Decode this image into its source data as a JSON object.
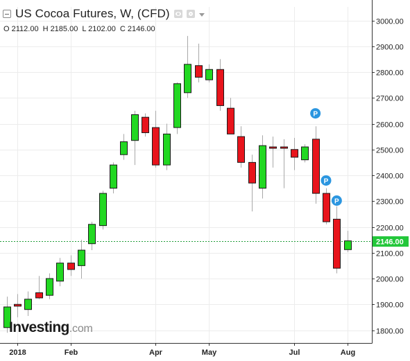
{
  "header": {
    "title": "US Cocoa Futures, W, (CFD)",
    "ohlc": {
      "open": "O 2112.00",
      "high": "H 2185.00",
      "low": "L 2102.00",
      "close": "C 2146.00"
    }
  },
  "logo": {
    "main": "Investing",
    "suffix": ".com"
  },
  "colors": {
    "up": "#22d822",
    "down": "#e8141c",
    "marker": "#2b96e0",
    "price_line": "#1f9c38",
    "grid": "#ececec"
  },
  "chart_data": {
    "type": "candlestick",
    "title": "US Cocoa Futures, W, (CFD)",
    "ylim": [
      1720,
      3080
    ],
    "y_ticks": [
      "3000.00",
      "2900.00",
      "2800.00",
      "2700.00",
      "2600.00",
      "2500.00",
      "2400.00",
      "2300.00",
      "2200.00",
      "2100.00",
      "2000.00",
      "1900.00",
      "1800.00"
    ],
    "x_tick_labels": [
      {
        "label": "2018",
        "index": 1
      },
      {
        "label": "Feb",
        "index": 6
      },
      {
        "label": "Apr",
        "index": 14
      },
      {
        "label": "May",
        "index": 19
      },
      {
        "label": "Jul",
        "index": 27
      },
      {
        "label": "Aug",
        "index": 32
      }
    ],
    "current_price": 2146.0,
    "current_price_label": "2146.00",
    "candles": [
      {
        "o": 1810,
        "h": 1930,
        "l": 1790,
        "c": 1890
      },
      {
        "o": 1900,
        "h": 1940,
        "l": 1850,
        "c": 1893
      },
      {
        "o": 1880,
        "h": 1950,
        "l": 1855,
        "c": 1920
      },
      {
        "o": 1945,
        "h": 2010,
        "l": 1920,
        "c": 1925
      },
      {
        "o": 1935,
        "h": 2020,
        "l": 1920,
        "c": 2000
      },
      {
        "o": 1990,
        "h": 2080,
        "l": 1970,
        "c": 2060
      },
      {
        "o": 2060,
        "h": 2090,
        "l": 2010,
        "c": 2035
      },
      {
        "o": 2050,
        "h": 2150,
        "l": 2000,
        "c": 2110
      },
      {
        "o": 2135,
        "h": 2220,
        "l": 2110,
        "c": 2210
      },
      {
        "o": 2205,
        "h": 2340,
        "l": 2190,
        "c": 2330
      },
      {
        "o": 2350,
        "h": 2450,
        "l": 2330,
        "c": 2440
      },
      {
        "o": 2480,
        "h": 2560,
        "l": 2460,
        "c": 2530
      },
      {
        "o": 2535,
        "h": 2650,
        "l": 2440,
        "c": 2635
      },
      {
        "o": 2625,
        "h": 2640,
        "l": 2550,
        "c": 2565
      },
      {
        "o": 2585,
        "h": 2650,
        "l": 2430,
        "c": 2440
      },
      {
        "o": 2440,
        "h": 2600,
        "l": 2420,
        "c": 2560
      },
      {
        "o": 2585,
        "h": 2760,
        "l": 2560,
        "c": 2755
      },
      {
        "o": 2720,
        "h": 2940,
        "l": 2700,
        "c": 2830
      },
      {
        "o": 2825,
        "h": 2910,
        "l": 2760,
        "c": 2780
      },
      {
        "o": 2770,
        "h": 2830,
        "l": 2760,
        "c": 2810
      },
      {
        "o": 2810,
        "h": 2850,
        "l": 2650,
        "c": 2670
      },
      {
        "o": 2660,
        "h": 2700,
        "l": 2560,
        "c": 2560
      },
      {
        "o": 2550,
        "h": 2590,
        "l": 2430,
        "c": 2450
      },
      {
        "o": 2450,
        "h": 2480,
        "l": 2260,
        "c": 2370
      },
      {
        "o": 2350,
        "h": 2555,
        "l": 2310,
        "c": 2515
      },
      {
        "o": 2510,
        "h": 2550,
        "l": 2430,
        "c": 2505
      },
      {
        "o": 2510,
        "h": 2540,
        "l": 2350,
        "c": 2505
      },
      {
        "o": 2500,
        "h": 2545,
        "l": 2420,
        "c": 2470
      },
      {
        "o": 2460,
        "h": 2520,
        "l": 2450,
        "c": 2510
      },
      {
        "o": 2540,
        "h": 2590,
        "l": 2290,
        "c": 2330
      },
      {
        "o": 2330,
        "h": 2350,
        "l": 2210,
        "c": 2220
      },
      {
        "o": 2230,
        "h": 2280,
        "l": 2020,
        "c": 2040
      },
      {
        "o": 2112,
        "h": 2185,
        "l": 2102,
        "c": 2146
      }
    ],
    "markers": [
      {
        "index": 29,
        "value": 2640,
        "label": "P"
      },
      {
        "index": 30,
        "value": 2380,
        "label": "P"
      },
      {
        "index": 31,
        "value": 2302,
        "label": "P"
      }
    ]
  }
}
